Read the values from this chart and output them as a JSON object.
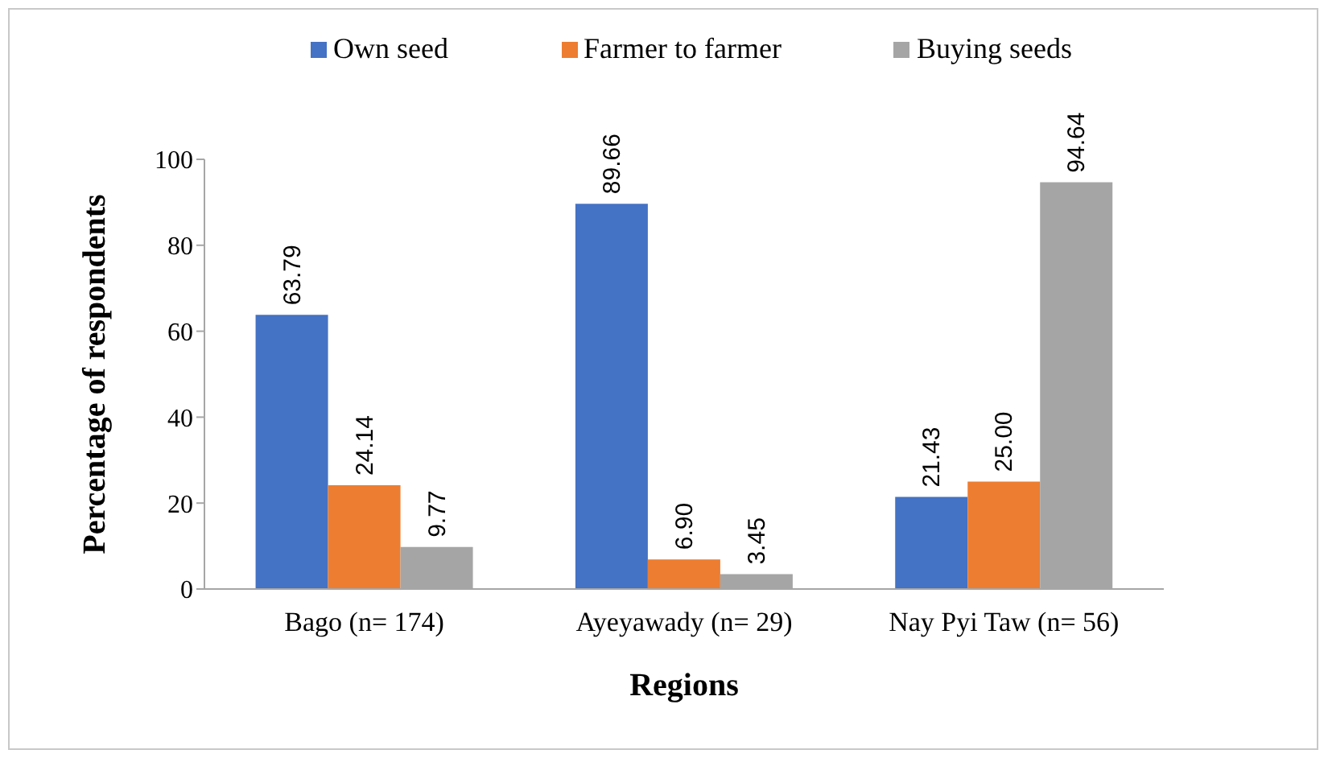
{
  "chart_data": {
    "type": "bar",
    "xlabel": "Regions",
    "ylabel": "Percentage of respondents",
    "categories": [
      "Bago (n= 174)",
      "Ayeyawady (n= 29)",
      "Nay Pyi Taw (n= 56)"
    ],
    "series": [
      {
        "name": "Own seed",
        "color": "#4472c4",
        "values": [
          63.79,
          89.66,
          21.43
        ],
        "value_labels": [
          "63.79",
          "89.66",
          "21.43"
        ]
      },
      {
        "name": "Farmer to farmer",
        "color": "#ed7d31",
        "values": [
          24.14,
          6.9,
          25.0
        ],
        "value_labels": [
          "24.14",
          "6.90",
          "25.00"
        ]
      },
      {
        "name": "Buying seeds",
        "color": "#a5a5a5",
        "values": [
          9.77,
          3.45,
          94.64
        ],
        "value_labels": [
          "9.77",
          "3.45",
          "94.64"
        ]
      }
    ],
    "ylim": [
      0,
      100
    ],
    "yticks": [
      0,
      20,
      40,
      60,
      80,
      100
    ],
    "legend": "top"
  }
}
